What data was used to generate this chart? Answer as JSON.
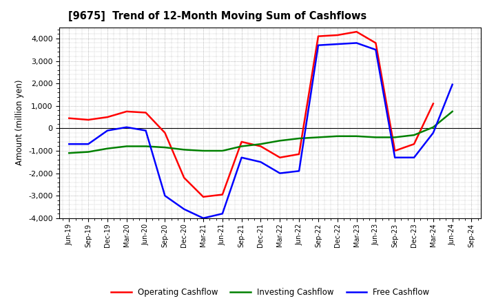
{
  "title": "[9675]  Trend of 12-Month Moving Sum of Cashflows",
  "ylabel": "Amount (million yen)",
  "ylim": [
    -4000,
    4500
  ],
  "yticks": [
    -4000,
    -3000,
    -2000,
    -1000,
    0,
    1000,
    2000,
    3000,
    4000
  ],
  "x_labels": [
    "Jun-19",
    "Sep-19",
    "Dec-19",
    "Mar-20",
    "Jun-20",
    "Sep-20",
    "Dec-20",
    "Mar-21",
    "Jun-21",
    "Sep-21",
    "Dec-21",
    "Mar-22",
    "Jun-22",
    "Sep-22",
    "Dec-22",
    "Mar-23",
    "Jun-23",
    "Sep-23",
    "Dec-23",
    "Mar-24",
    "Jun-24",
    "Sep-24"
  ],
  "operating": [
    450,
    380,
    500,
    750,
    700,
    -200,
    -2200,
    -3050,
    -2950,
    -600,
    -800,
    -1300,
    -1150,
    4100,
    4150,
    4300,
    3800,
    -1000,
    -700,
    1100,
    null,
    null
  ],
  "investing": [
    -1100,
    -1050,
    -900,
    -800,
    -800,
    -850,
    -950,
    -1000,
    -1000,
    -800,
    -700,
    -550,
    -450,
    -400,
    -350,
    -350,
    -400,
    -400,
    -300,
    50,
    750,
    null
  ],
  "free": [
    -700,
    -700,
    -100,
    50,
    -100,
    -3000,
    -3600,
    -4000,
    -3800,
    -1300,
    -1500,
    -2000,
    -1900,
    3700,
    3750,
    3800,
    3500,
    -1300,
    -1300,
    -200,
    1950,
    null
  ],
  "line_colors": {
    "operating": "#ff0000",
    "investing": "#008000",
    "free": "#0000ff"
  },
  "line_width": 1.8,
  "bg_color": "#ffffff",
  "plot_bg_color": "#ffffff",
  "grid_color": "#888888",
  "legend_labels": [
    "Operating Cashflow",
    "Investing Cashflow",
    "Free Cashflow"
  ]
}
